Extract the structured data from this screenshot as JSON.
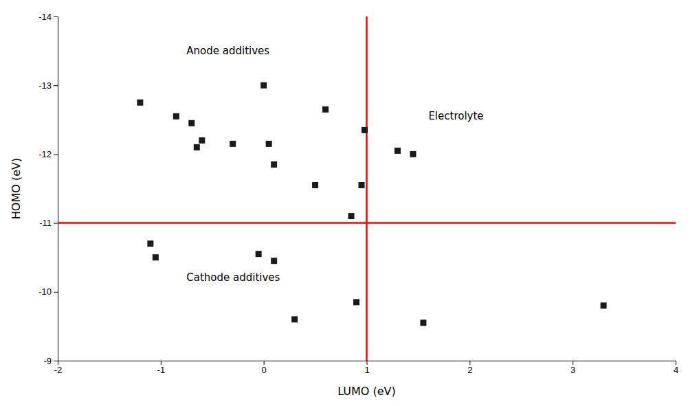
{
  "chart_data": {
    "type": "scatter",
    "x": [
      -1.2,
      -0.85,
      -0.7,
      -0.65,
      -0.6,
      -0.3,
      0.0,
      0.05,
      0.1,
      0.5,
      0.6,
      0.85,
      0.95,
      0.98,
      1.3,
      1.45,
      -1.1,
      -1.05,
      -0.05,
      0.1,
      0.9,
      0.3,
      1.55,
      3.3
    ],
    "values": [
      -12.75,
      -12.55,
      -12.45,
      -12.1,
      -12.2,
      -12.15,
      -13.0,
      -12.15,
      -11.85,
      -11.55,
      -12.65,
      -11.1,
      -11.55,
      -12.35,
      -12.05,
      -12.0,
      -10.7,
      -10.5,
      -10.55,
      -10.45,
      -9.85,
      -9.6,
      -9.55,
      -9.8
    ],
    "color": "#1a1a1a",
    "marker": "square",
    "xlabel": "LUMO (eV)",
    "ylabel": "HOMO (eV)",
    "xlim": [
      -2,
      4
    ],
    "ylim": [
      -9,
      -14
    ],
    "xticks": [
      -2,
      -1,
      0,
      1,
      2,
      3,
      4
    ],
    "yticks": [
      -14,
      -13,
      -12,
      -11,
      -10,
      -9
    ],
    "grid": false,
    "reference_lines": [
      {
        "axis": "y",
        "value": -11.0,
        "color": "#ff0000"
      },
      {
        "axis": "x",
        "value": 1.0,
        "color": "#ff0000"
      }
    ],
    "annotations": [
      {
        "text": "Anode additives",
        "x": -0.75,
        "y": -13.5
      },
      {
        "text": "Cathode additives",
        "x": -0.75,
        "y": -10.2
      },
      {
        "text": "Electrolyte",
        "x": 1.6,
        "y": -12.55
      }
    ]
  }
}
